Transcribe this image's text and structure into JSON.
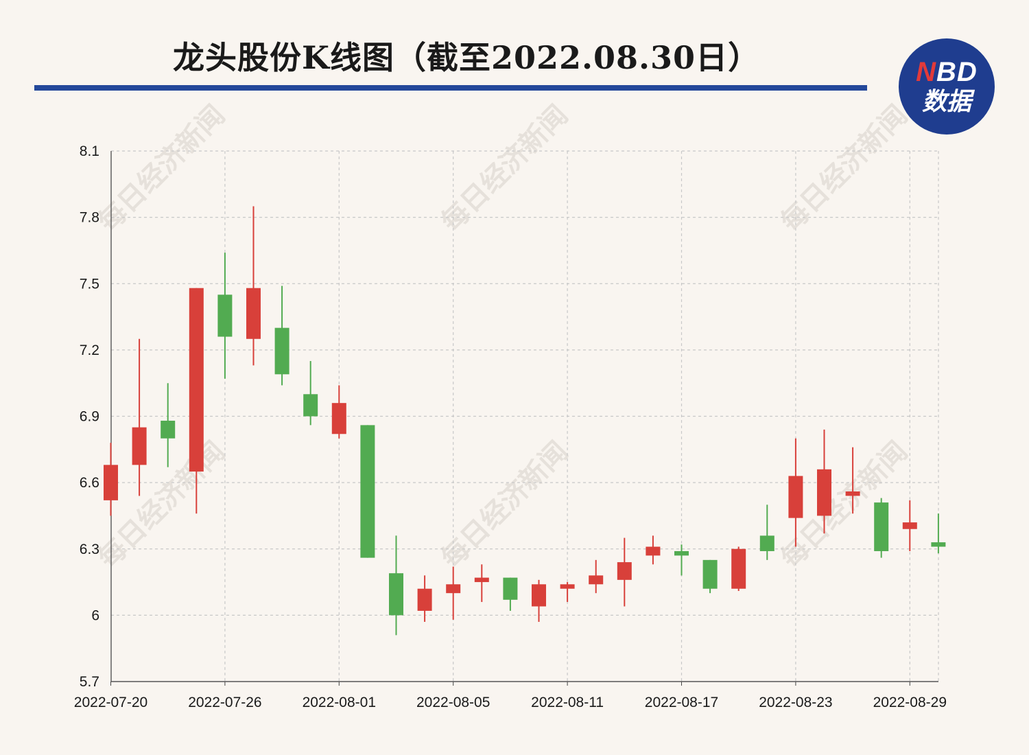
{
  "title": "龙头股份K线图（截至2022.08.30日）",
  "badge": {
    "line1_accent": "N",
    "line1_rest": "BD",
    "line2": "数据"
  },
  "watermark": "每日经济新闻",
  "colors": {
    "up": "#d8403a",
    "down": "#52ab51",
    "accent": "#24489a",
    "grid": "#c8c8c8"
  },
  "chart_data": {
    "type": "candlestick",
    "ylim": [
      5.7,
      8.1
    ],
    "yticks": [
      {
        "value": 5.7,
        "label": "5.7"
      },
      {
        "value": 6.0,
        "label": "6"
      },
      {
        "value": 6.3,
        "label": "6.3"
      },
      {
        "value": 6.6,
        "label": "6.6"
      },
      {
        "value": 6.9,
        "label": "6.9"
      },
      {
        "value": 7.2,
        "label": "7.2"
      },
      {
        "value": 7.5,
        "label": "7.5"
      },
      {
        "value": 7.8,
        "label": "7.8"
      },
      {
        "value": 8.1,
        "label": "8.1"
      }
    ],
    "xticks": [
      "2022-07-20",
      "2022-07-26",
      "2022-08-01",
      "2022-08-05",
      "2022-08-11",
      "2022-08-17",
      "2022-08-23",
      "2022-08-29"
    ],
    "candles": [
      {
        "date": "2022-07-20",
        "open": 6.52,
        "high": 6.78,
        "low": 6.45,
        "close": 6.68
      },
      {
        "date": "2022-07-21",
        "open": 6.68,
        "high": 7.25,
        "low": 6.54,
        "close": 6.85
      },
      {
        "date": "2022-07-22",
        "open": 6.88,
        "high": 7.05,
        "low": 6.67,
        "close": 6.8
      },
      {
        "date": "2022-07-25",
        "open": 6.65,
        "high": 7.48,
        "low": 6.46,
        "close": 7.48
      },
      {
        "date": "2022-07-26",
        "open": 7.45,
        "high": 7.64,
        "low": 7.07,
        "close": 7.26
      },
      {
        "date": "2022-07-27",
        "open": 7.25,
        "high": 7.85,
        "low": 7.13,
        "close": 7.48
      },
      {
        "date": "2022-07-28",
        "open": 7.3,
        "high": 7.49,
        "low": 7.04,
        "close": 7.09
      },
      {
        "date": "2022-07-29",
        "open": 7.0,
        "high": 7.15,
        "low": 6.86,
        "close": 6.9
      },
      {
        "date": "2022-08-01",
        "open": 6.82,
        "high": 7.04,
        "low": 6.8,
        "close": 6.96
      },
      {
        "date": "2022-08-02",
        "open": 6.86,
        "high": 6.86,
        "low": 6.26,
        "close": 6.26
      },
      {
        "date": "2022-08-03",
        "open": 6.19,
        "high": 6.36,
        "low": 5.91,
        "close": 6.0
      },
      {
        "date": "2022-08-04",
        "open": 6.02,
        "high": 6.18,
        "low": 5.97,
        "close": 6.12
      },
      {
        "date": "2022-08-05",
        "open": 6.1,
        "high": 6.22,
        "low": 5.98,
        "close": 6.14
      },
      {
        "date": "2022-08-08",
        "open": 6.15,
        "high": 6.23,
        "low": 6.06,
        "close": 6.17
      },
      {
        "date": "2022-08-09",
        "open": 6.17,
        "high": 6.17,
        "low": 6.02,
        "close": 6.07
      },
      {
        "date": "2022-08-10",
        "open": 6.04,
        "high": 6.16,
        "low": 5.97,
        "close": 6.14
      },
      {
        "date": "2022-08-11",
        "open": 6.12,
        "high": 6.15,
        "low": 6.06,
        "close": 6.14
      },
      {
        "date": "2022-08-12",
        "open": 6.14,
        "high": 6.25,
        "low": 6.1,
        "close": 6.18
      },
      {
        "date": "2022-08-15",
        "open": 6.16,
        "high": 6.35,
        "low": 6.04,
        "close": 6.24
      },
      {
        "date": "2022-08-16",
        "open": 6.27,
        "high": 6.36,
        "low": 6.23,
        "close": 6.31
      },
      {
        "date": "2022-08-17",
        "open": 6.29,
        "high": 6.32,
        "low": 6.18,
        "close": 6.27
      },
      {
        "date": "2022-08-18",
        "open": 6.25,
        "high": 6.25,
        "low": 6.1,
        "close": 6.12
      },
      {
        "date": "2022-08-19",
        "open": 6.12,
        "high": 6.31,
        "low": 6.11,
        "close": 6.3
      },
      {
        "date": "2022-08-22",
        "open": 6.36,
        "high": 6.5,
        "low": 6.25,
        "close": 6.29
      },
      {
        "date": "2022-08-23",
        "open": 6.44,
        "high": 6.8,
        "low": 6.31,
        "close": 6.63
      },
      {
        "date": "2022-08-24",
        "open": 6.45,
        "high": 6.84,
        "low": 6.37,
        "close": 6.66
      },
      {
        "date": "2022-08-25",
        "open": 6.54,
        "high": 6.76,
        "low": 6.46,
        "close": 6.56
      },
      {
        "date": "2022-08-26",
        "open": 6.51,
        "high": 6.53,
        "low": 6.26,
        "close": 6.29
      },
      {
        "date": "2022-08-29",
        "open": 6.39,
        "high": 6.52,
        "low": 6.29,
        "close": 6.42
      },
      {
        "date": "2022-08-30",
        "open": 6.33,
        "high": 6.46,
        "low": 6.28,
        "close": 6.31
      }
    ]
  }
}
